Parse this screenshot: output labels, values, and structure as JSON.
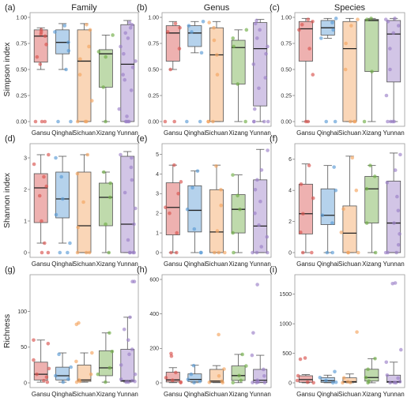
{
  "chart_data": [
    {
      "type": "box",
      "panel_label": "(a)",
      "title": "Family",
      "ylabel": "Simpson index",
      "xlabel": "",
      "categories": [
        "Gansu",
        "Qinghai",
        "Sichuan",
        "Xizang",
        "Yunnan"
      ],
      "ylim": [
        0,
        1
      ],
      "yticks": [
        0,
        0.25,
        0.5,
        0.75,
        1
      ],
      "tick_labels": [
        "0.00",
        "0.25",
        "0.50",
        "0.75",
        "1.00"
      ],
      "boxes": [
        {
          "whisker_low": 0.5,
          "q1": 0.57,
          "median": 0.82,
          "q3": 0.88,
          "whisker_high": 0.9
        },
        {
          "whisker_low": 0.5,
          "q1": 0.65,
          "median": 0.76,
          "q3": 0.88,
          "whisker_high": 0.94
        },
        {
          "whisker_low": 0.0,
          "q1": 0.0,
          "median": 0.58,
          "q3": 0.88,
          "whisker_high": 0.94
        },
        {
          "whisker_low": 0.0,
          "q1": 0.33,
          "median": 0.65,
          "q3": 0.69,
          "whisker_high": 0.83
        },
        {
          "whisker_low": 0.0,
          "q1": 0.0,
          "median": 0.55,
          "q3": 0.93,
          "whisker_high": 0.97
        }
      ],
      "points": [
        [
          0.0,
          0.0,
          0.0,
          0.55,
          0.62,
          0.74,
          0.82,
          0.84,
          0.86,
          0.88
        ],
        [
          0.0,
          0.0,
          0.5,
          0.68,
          0.76,
          0.86,
          0.92
        ],
        [
          0.0,
          0.0,
          0.0,
          0.2,
          0.45,
          0.6,
          0.72,
          0.88,
          0.93
        ],
        [
          0.0,
          0.33,
          0.62,
          0.67,
          0.83
        ],
        [
          0.0,
          0.0,
          0.0,
          0.0,
          0.05,
          0.12,
          0.3,
          0.4,
          0.45,
          0.52,
          0.58,
          0.65,
          0.72,
          0.8,
          0.85,
          0.9,
          0.93,
          0.95
        ]
      ]
    },
    {
      "type": "box",
      "panel_label": "(b)",
      "title": "Genus",
      "ylabel": "",
      "xlabel": "",
      "categories": [
        "Gansu",
        "Qinghai",
        "Sichuan",
        "Xizang",
        "Yunnan"
      ],
      "ylim": [
        0,
        1
      ],
      "yticks": [
        0,
        0.25,
        0.5,
        0.75,
        1
      ],
      "tick_labels": [
        "0.00",
        "0.25",
        "0.50",
        "0.75",
        "1.00"
      ],
      "boxes": [
        {
          "whisker_low": 0.5,
          "q1": 0.58,
          "median": 0.85,
          "q3": 0.92,
          "whisker_high": 0.96
        },
        {
          "whisker_low": 0.66,
          "q1": 0.72,
          "median": 0.85,
          "q3": 0.92,
          "whisker_high": 0.96
        },
        {
          "whisker_low": 0.0,
          "q1": 0.0,
          "median": 0.64,
          "q3": 0.9,
          "whisker_high": 0.96
        },
        {
          "whisker_low": 0.0,
          "q1": 0.36,
          "median": 0.71,
          "q3": 0.78,
          "whisker_high": 0.88
        },
        {
          "whisker_low": 0.0,
          "q1": 0.15,
          "median": 0.7,
          "q3": 0.95,
          "whisker_high": 0.98
        }
      ],
      "points": [
        [
          0.0,
          0.0,
          0.5,
          0.7,
          0.86,
          0.9,
          0.94
        ],
        [
          0.0,
          0.0,
          0.66,
          0.86,
          0.92,
          0.96
        ],
        [
          0.0,
          0.0,
          0.0,
          0.45,
          0.64,
          0.78,
          0.9,
          0.95
        ],
        [
          0.0,
          0.36,
          0.72,
          0.8,
          0.88
        ],
        [
          0.0,
          0.0,
          0.0,
          0.0,
          0.12,
          0.32,
          0.42,
          0.55,
          0.65,
          0.72,
          0.8,
          0.88,
          0.94,
          0.97
        ]
      ]
    },
    {
      "type": "box",
      "panel_label": "(c)",
      "title": "Species",
      "ylabel": "",
      "xlabel": "",
      "categories": [
        "Gansu",
        "Qinghai",
        "Sichuan",
        "Xizang",
        "Yunnan"
      ],
      "ylim": [
        0,
        1
      ],
      "yticks": [
        0,
        0.25,
        0.5,
        0.75,
        1
      ],
      "tick_labels": [
        "0.00",
        "0.25",
        "0.50",
        "0.75",
        "1.00"
      ],
      "boxes": [
        {
          "whisker_low": 0.0,
          "q1": 0.58,
          "median": 0.89,
          "q3": 0.96,
          "whisker_high": 0.99
        },
        {
          "whisker_low": 0.8,
          "q1": 0.83,
          "median": 0.9,
          "q3": 0.97,
          "whisker_high": 0.99
        },
        {
          "whisker_low": 0.0,
          "q1": 0.0,
          "median": 0.7,
          "q3": 0.96,
          "whisker_high": 0.99
        },
        {
          "whisker_low": 0.0,
          "q1": 0.48,
          "median": 0.97,
          "q3": 0.98,
          "whisker_high": 0.99
        },
        {
          "whisker_low": 0.0,
          "q1": 0.38,
          "median": 0.84,
          "q3": 0.97,
          "whisker_high": 0.99
        }
      ],
      "points": [
        [
          0.0,
          0.0,
          0.45,
          0.7,
          0.88,
          0.93,
          0.96,
          0.98
        ],
        [
          0.0,
          0.0,
          0.8,
          0.88,
          0.95,
          0.99
        ],
        [
          0.0,
          0.0,
          0.0,
          0.5,
          0.75,
          0.92,
          0.98
        ],
        [
          0.0,
          0.48,
          0.98,
          0.99
        ],
        [
          0.0,
          0.0,
          0.0,
          0.0,
          0.25,
          0.5,
          0.7,
          0.85,
          0.92,
          0.96,
          0.98,
          0.99
        ]
      ]
    },
    {
      "type": "box",
      "panel_label": "(d)",
      "title": "",
      "ylabel": "Shannon index",
      "xlabel": "",
      "categories": [
        "Gansu",
        "Qinghai",
        "Sichuan",
        "Xizang",
        "Yunnan"
      ],
      "ylim": [
        0,
        3.3
      ],
      "yticks": [
        0,
        1,
        2,
        3
      ],
      "tick_labels": [
        "0",
        "1",
        "2",
        "3"
      ],
      "boxes": [
        {
          "whisker_low": 0.3,
          "q1": 0.95,
          "median": 2.05,
          "q3": 2.5,
          "whisker_high": 3.1
        },
        {
          "whisker_low": 0.3,
          "q1": 1.1,
          "median": 1.7,
          "q3": 2.55,
          "whisker_high": 3.05
        },
        {
          "whisker_low": 0.0,
          "q1": 0.0,
          "median": 0.85,
          "q3": 2.55,
          "whisker_high": 3.1
        },
        {
          "whisker_low": 0.0,
          "q1": 0.85,
          "median": 1.75,
          "q3": 2.2,
          "whisker_high": 2.55
        },
        {
          "whisker_low": 0.0,
          "q1": 0.0,
          "median": 0.9,
          "q3": 3.05,
          "whisker_high": 3.2
        }
      ],
      "points": [
        [
          0.0,
          0.0,
          0.3,
          1.0,
          1.8,
          2.1,
          2.4,
          2.8,
          3.1
        ],
        [
          0.0,
          0.0,
          0.3,
          1.2,
          1.7,
          2.4,
          3.0
        ],
        [
          0.0,
          0.0,
          0.0,
          0.8,
          1.6,
          2.5,
          3.1
        ],
        [
          0.0,
          0.9,
          1.75,
          2.2,
          2.55
        ],
        [
          0.0,
          0.0,
          0.0,
          0.0,
          0.4,
          0.9,
          1.4,
          1.9,
          2.3,
          2.7,
          3.0,
          3.1
        ]
      ]
    },
    {
      "type": "box",
      "panel_label": "(e)",
      "title": "",
      "ylabel": "",
      "xlabel": "",
      "categories": [
        "Gansu",
        "Qinghai",
        "Sichuan",
        "Xizang",
        "Yunnan"
      ],
      "ylim": [
        0,
        5.3
      ],
      "yticks": [
        0,
        1,
        2,
        3,
        4,
        5
      ],
      "tick_labels": [
        "0",
        "1",
        "2",
        "3",
        "4",
        "5"
      ],
      "boxes": [
        {
          "whisker_low": 0.0,
          "q1": 0.9,
          "median": 2.3,
          "q3": 3.55,
          "whisker_high": 4.45
        },
        {
          "whisker_low": 0.0,
          "q1": 1.05,
          "median": 2.15,
          "q3": 3.4,
          "whisker_high": 4.15
        },
        {
          "whisker_low": 0.0,
          "q1": 0.0,
          "median": 1.05,
          "q3": 3.2,
          "whisker_high": 4.45
        },
        {
          "whisker_low": 0.0,
          "q1": 1.0,
          "median": 2.2,
          "q3": 2.95,
          "whisker_high": 3.95
        },
        {
          "whisker_low": 0.0,
          "q1": 0.0,
          "median": 1.35,
          "q3": 3.7,
          "whisker_high": 5.25
        }
      ],
      "points": [
        [
          0.0,
          0.0,
          1.0,
          2.0,
          2.3,
          3.0,
          3.6,
          4.45
        ],
        [
          0.0,
          0.0,
          1.2,
          2.2,
          3.3,
          4.15
        ],
        [
          0.0,
          0.0,
          0.0,
          1.1,
          2.4,
          3.2,
          4.4
        ],
        [
          0.0,
          1.0,
          2.2,
          2.9,
          3.95
        ],
        [
          0.0,
          0.0,
          0.0,
          0.3,
          0.8,
          1.4,
          2.0,
          2.6,
          3.2,
          3.7,
          4.2,
          5.2
        ]
      ]
    },
    {
      "type": "box",
      "panel_label": "(f)",
      "title": "",
      "ylabel": "",
      "xlabel": "",
      "categories": [
        "Gansu",
        "Qinghai",
        "Sichuan",
        "Xizang",
        "Yunnan"
      ],
      "ylim": [
        0,
        6.7
      ],
      "yticks": [
        0,
        2,
        4,
        6
      ],
      "tick_labels": [
        "0",
        "2",
        "4",
        "6"
      ],
      "boxes": [
        {
          "whisker_low": 0.0,
          "q1": 1.2,
          "median": 2.5,
          "q3": 4.4,
          "whisker_high": 5.7
        },
        {
          "whisker_low": 0.0,
          "q1": 1.8,
          "median": 2.4,
          "q3": 4.1,
          "whisker_high": 5.6
        },
        {
          "whisker_low": 0.0,
          "q1": 0.0,
          "median": 1.25,
          "q3": 3.0,
          "whisker_high": 6.2
        },
        {
          "whisker_low": 0.0,
          "q1": 1.9,
          "median": 4.1,
          "q3": 4.9,
          "whisker_high": 5.6
        },
        {
          "whisker_low": 0.0,
          "q1": 0.0,
          "median": 1.9,
          "q3": 4.6,
          "whisker_high": 6.4
        }
      ],
      "points": [
        [
          0.0,
          0.0,
          1.3,
          2.5,
          3.5,
          4.4,
          5.6
        ],
        [
          0.0,
          0.0,
          1.9,
          2.4,
          4.0,
          5.5
        ],
        [
          0.0,
          0.0,
          0.0,
          1.3,
          2.8,
          4.0,
          6.1
        ],
        [
          0.0,
          1.9,
          4.1,
          4.9,
          5.6
        ],
        [
          0.0,
          0.0,
          0.0,
          0.5,
          1.2,
          1.9,
          2.7,
          3.6,
          4.5,
          5.3,
          6.3
        ]
      ]
    },
    {
      "type": "box",
      "panel_label": "(g)",
      "title": "",
      "ylabel": "Richness",
      "xlabel": "",
      "categories": [
        "Gansu",
        "Qinghai",
        "Sichuan",
        "Xizang",
        "Yunnan"
      ],
      "ylim": [
        0,
        145
      ],
      "yticks": [
        0,
        50,
        100
      ],
      "tick_labels": [
        "0",
        "50",
        "100"
      ],
      "boxes": [
        {
          "whisker_low": 1,
          "q1": 4,
          "median": 12,
          "q3": 29,
          "whisker_high": 60
        },
        {
          "whisker_low": 1,
          "q1": 4,
          "median": 10,
          "q3": 22,
          "whisker_high": 42
        },
        {
          "whisker_low": 1,
          "q1": 2,
          "median": 4,
          "q3": 25,
          "whisker_high": 42
        },
        {
          "whisker_low": 1,
          "q1": 10,
          "median": 21,
          "q3": 45,
          "whisker_high": 70
        },
        {
          "whisker_low": 1,
          "q1": 2,
          "median": 3,
          "q3": 47,
          "whisker_high": 92
        }
      ],
      "points": [
        [
          1,
          3,
          8,
          12,
          20,
          32,
          55,
          60
        ],
        [
          1,
          5,
          10,
          22,
          40
        ],
        [
          1,
          2,
          4,
          12,
          30,
          42,
          82,
          84
        ],
        [
          1,
          12,
          21,
          44,
          70
        ],
        [
          1,
          1,
          2,
          3,
          5,
          12,
          25,
          40,
          47,
          60,
          75,
          92,
          142,
          142
        ]
      ]
    },
    {
      "type": "box",
      "panel_label": "(h)",
      "title": "",
      "ylabel": "",
      "xlabel": "",
      "categories": [
        "Gansu",
        "Qinghai",
        "Sichuan",
        "Xizang",
        "Yunnan"
      ],
      "ylim": [
        0,
        600
      ],
      "yticks": [
        0,
        200,
        400,
        600
      ],
      "tick_labels": [
        "0",
        "200",
        "400",
        "600"
      ],
      "boxes": [
        {
          "whisker_low": 1,
          "q1": 5,
          "median": 17,
          "q3": 62,
          "whisker_high": 88
        },
        {
          "whisker_low": 1,
          "q1": 8,
          "median": 20,
          "q3": 52,
          "whisker_high": 102
        },
        {
          "whisker_low": 1,
          "q1": 3,
          "median": 10,
          "q3": 78,
          "whisker_high": 100
        },
        {
          "whisker_low": 1,
          "q1": 14,
          "median": 42,
          "q3": 98,
          "whisker_high": 165
        },
        {
          "whisker_low": 1,
          "q1": 2,
          "median": 15,
          "q3": 78,
          "whisker_high": 160
        }
      ],
      "points": [
        [
          1,
          5,
          15,
          30,
          60,
          155,
          170
        ],
        [
          1,
          8,
          20,
          50,
          100
        ],
        [
          1,
          3,
          10,
          40,
          80,
          280
        ],
        [
          1,
          14,
          42,
          98,
          165
        ],
        [
          1,
          1,
          2,
          5,
          15,
          40,
          78,
          160,
          290,
          570
        ]
      ]
    },
    {
      "type": "box",
      "panel_label": "(i)",
      "title": "",
      "ylabel": "",
      "xlabel": "",
      "categories": [
        "Gansu",
        "Qinghai",
        "Sichuan",
        "Xizang",
        "Yunnan"
      ],
      "ylim": [
        0,
        1750
      ],
      "yticks": [
        0,
        500,
        1000,
        1500
      ],
      "tick_labels": [
        "0",
        "500",
        "1000",
        "1500"
      ],
      "boxes": [
        {
          "whisker_low": 1,
          "q1": 10,
          "median": 55,
          "q3": 120,
          "whisker_high": 140
        },
        {
          "whisker_low": 1,
          "q1": 8,
          "median": 35,
          "q3": 90,
          "whisker_high": 130
        },
        {
          "whisker_low": 1,
          "q1": 5,
          "median": 20,
          "q3": 85,
          "whisker_high": 150
        },
        {
          "whisker_low": 1,
          "q1": 30,
          "median": 90,
          "q3": 230,
          "whisker_high": 410
        },
        {
          "whisker_low": 1,
          "q1": 5,
          "median": 20,
          "q3": 130,
          "whisker_high": 350
        }
      ],
      "points": [
        [
          1,
          10,
          40,
          120,
          400,
          420
        ],
        [
          1,
          10,
          40,
          90,
          190
        ],
        [
          1,
          5,
          20,
          85,
          860
        ],
        [
          1,
          30,
          90,
          230,
          410
        ],
        [
          1,
          2,
          5,
          20,
          80,
          130,
          350,
          560,
          1680,
          1690
        ]
      ]
    }
  ],
  "colors": {
    "Gansu": "#d9534f",
    "Qinghai": "#5b9bd5",
    "Sichuan": "#f4a460",
    "Xizang": "#70ad47",
    "Yunnan": "#9b7fc7"
  }
}
